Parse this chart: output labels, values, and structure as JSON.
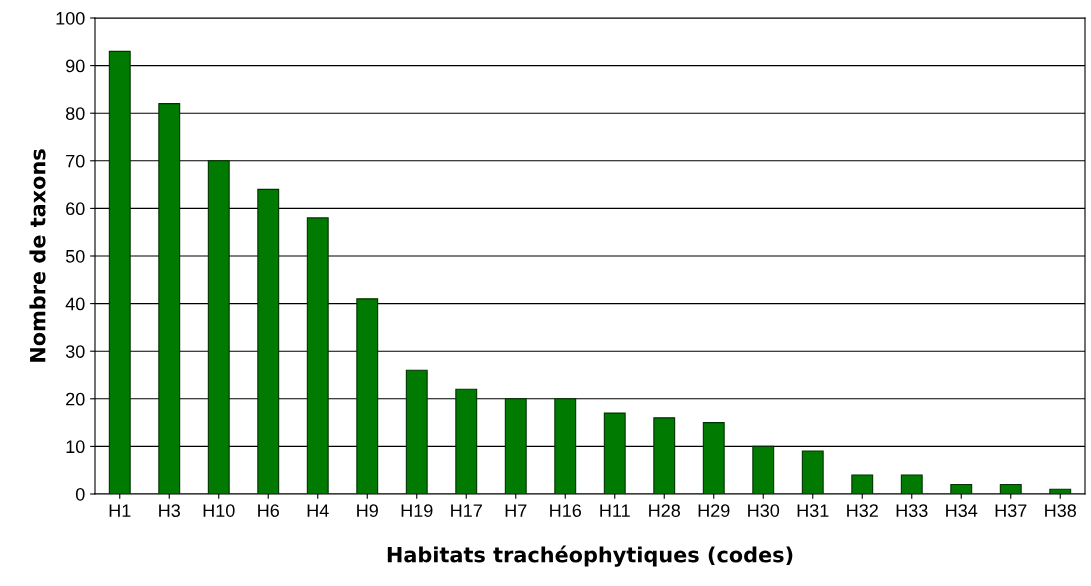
{
  "chart_data": {
    "type": "bar",
    "xlabel": "Habitats trachéophytiques (codes)",
    "ylabel": "Nombre de taxons",
    "categories": [
      "H1",
      "H3",
      "H10",
      "H6",
      "H4",
      "H9",
      "H19",
      "H17",
      "H7",
      "H16",
      "H11",
      "H28",
      "H29",
      "H30",
      "H31",
      "H32",
      "H33",
      "H34",
      "H37",
      "H38"
    ],
    "values": [
      93,
      82,
      70,
      64,
      58,
      41,
      26,
      22,
      20,
      20,
      17,
      16,
      15,
      10,
      9,
      4,
      4,
      2,
      2,
      1
    ],
    "color": "#007a00",
    "ylim": [
      0,
      100
    ],
    "yticks": [
      0,
      10,
      20,
      30,
      40,
      50,
      60,
      70,
      80,
      90,
      100
    ],
    "grid": "y",
    "legend": false
  }
}
